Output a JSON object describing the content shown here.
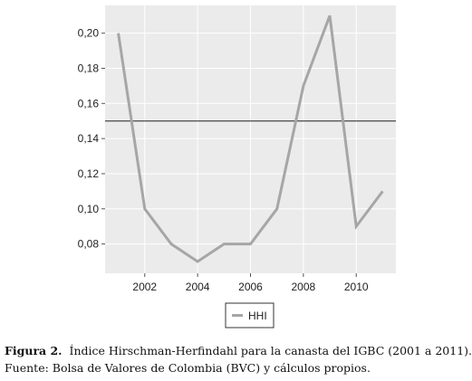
{
  "chart_data": {
    "type": "line",
    "x": [
      2001,
      2002,
      2003,
      2004,
      2005,
      2006,
      2007,
      2008,
      2009,
      2010,
      2011
    ],
    "series": [
      {
        "name": "HHI",
        "values": [
          0.2,
          0.1,
          0.08,
          0.07,
          0.08,
          0.08,
          0.1,
          0.17,
          0.21,
          0.09,
          0.11
        ],
        "color": "#a6a6a6"
      }
    ],
    "reference_line": {
      "y": 0.15,
      "color": "#222222"
    },
    "xlim": [
      2000.5,
      2011.5
    ],
    "ylim": [
      0.0633,
      0.2158
    ],
    "x_ticks": [
      2002,
      2004,
      2006,
      2008,
      2010
    ],
    "x_tick_labels": [
      "2002",
      "2004",
      "2006",
      "2008",
      "2010"
    ],
    "y_ticks": [
      0.08,
      0.1,
      0.12,
      0.14,
      0.16,
      0.18,
      0.2
    ],
    "y_tick_labels": [
      "0,08",
      "0,10",
      "0,12",
      "0,14",
      "0,16",
      "0,18",
      "0,20"
    ],
    "grid": true,
    "panel_background": "#ebebeb",
    "grid_color": "#ffffff",
    "legend": {
      "position": "bottom",
      "entries": [
        "HHI"
      ]
    }
  },
  "caption": {
    "label": "Figura 2.",
    "text": "Índice Hirschman-Herfindahl para la canasta del IGBC (2001 a 2011).",
    "source": "Fuente: Bolsa de Valores de Colombia (BVC) y cálculos propios."
  }
}
